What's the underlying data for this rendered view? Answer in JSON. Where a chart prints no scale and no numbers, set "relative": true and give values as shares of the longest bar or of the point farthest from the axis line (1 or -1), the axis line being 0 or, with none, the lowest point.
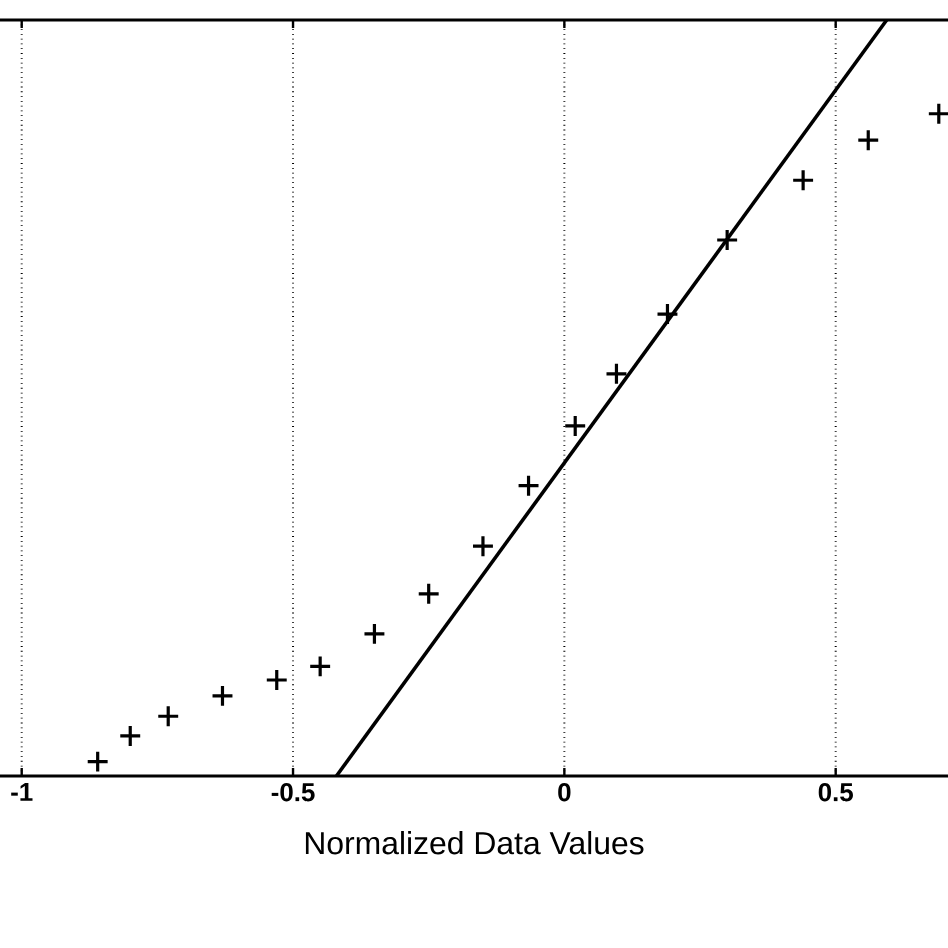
{
  "chart_data": {
    "type": "scatter",
    "xlabel": "Normalized Data Values",
    "relative": true,
    "xlim": [
      -1.04,
      0.707
    ],
    "xticks": [
      -1,
      -0.5,
      0,
      0.5
    ],
    "grid": "x",
    "marker": "cross",
    "series": [
      {
        "color": "#000000",
        "x": [
          -0.86,
          -0.8,
          -0.73,
          -0.63,
          -0.53,
          -0.45,
          -0.35,
          -0.25,
          -0.15,
          -0.066,
          0.02,
          0.096,
          0.19,
          0.3,
          0.44,
          0.56,
          0.69
        ],
        "values": [
          0.019,
          0.053,
          0.079,
          0.106,
          0.127,
          0.145,
          0.188,
          0.241,
          0.304,
          0.384,
          0.463,
          0.532,
          0.611,
          0.709,
          0.788,
          0.841,
          0.876
        ]
      },
      {
        "type": "line",
        "color": "#000000",
        "marker": "none",
        "line_style": "solid",
        "x": [
          -0.42,
          0.594
        ],
        "values": [
          0,
          1
        ]
      }
    ]
  }
}
